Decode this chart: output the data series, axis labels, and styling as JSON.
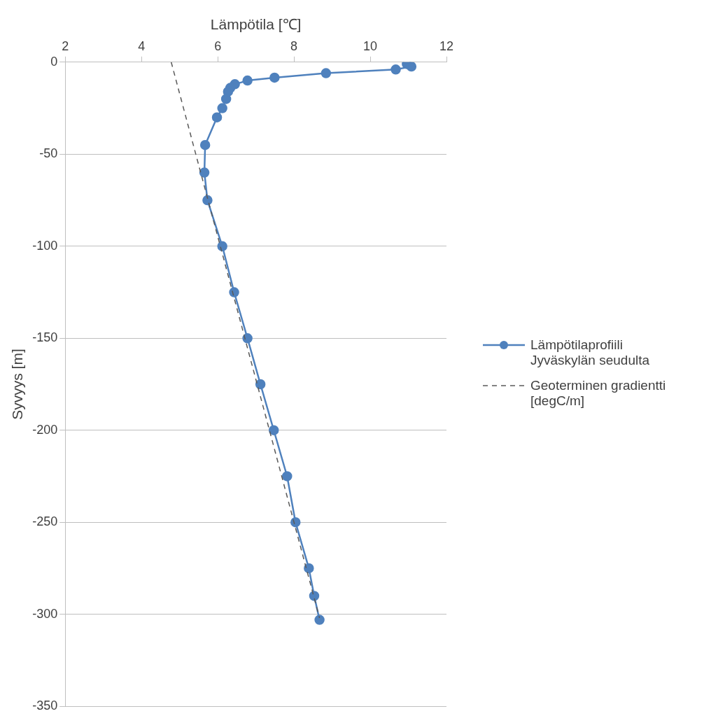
{
  "chart_data": {
    "type": "line",
    "xlabel": "Lämpötila [℃]",
    "ylabel": "Syvyys [m]",
    "xlim": [
      2,
      12
    ],
    "xticks": [
      2,
      4,
      6,
      8,
      10,
      12
    ],
    "ylim": [
      -350,
      0
    ],
    "yticks": [
      -350,
      -300,
      -250,
      -200,
      -150,
      -100,
      -50,
      0
    ],
    "grid": "y",
    "legend": "right",
    "series": [
      {
        "name": "Lämpötilaprofiili Jyväskylän seudulta",
        "color": "#4f81bd",
        "marker": "circle",
        "line_style": "solid",
        "x": [
          10.96,
          11.08,
          10.67,
          8.84,
          7.49,
          6.78,
          6.45,
          6.33,
          6.27,
          6.22,
          6.12,
          5.98,
          5.67,
          5.65,
          5.73,
          6.12,
          6.43,
          6.78,
          7.12,
          7.47,
          7.82,
          8.04,
          8.39,
          8.53,
          8.67
        ],
        "values": [
          -1,
          -2.4,
          -4,
          -6,
          -8.4,
          -10,
          -12,
          -14,
          -16,
          -20,
          -25,
          -30,
          -45,
          -60,
          -75,
          -100,
          -125,
          -150,
          -175,
          -200,
          -225,
          -250,
          -275,
          -290,
          -303
        ]
      },
      {
        "name": "Geoterminen gradientti [degC/m]",
        "color": "#595959",
        "marker": "none",
        "line_style": "dashed",
        "x": [
          4.78,
          8.67
        ],
        "values": [
          0,
          -302
        ]
      }
    ]
  }
}
